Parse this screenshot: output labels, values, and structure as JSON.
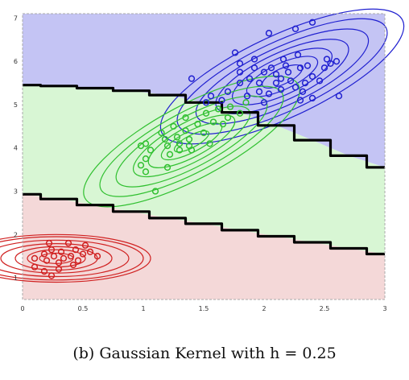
{
  "caption": "(b) Gaussian Kernel with h = 0.25",
  "chart_data": {
    "type": "scatter",
    "title": "",
    "xlabel": "",
    "ylabel": "",
    "xlim": [
      0,
      3
    ],
    "ylim": [
      0.5,
      7.1
    ],
    "grid": false,
    "x_ticks": [
      "0",
      "0.5",
      "1",
      "1.5",
      "2",
      "2.5",
      "3"
    ],
    "x_tick_values": [
      0,
      0.5,
      1,
      1.5,
      2,
      2.5,
      3
    ],
    "y_ticks": [
      "1",
      "2",
      "3",
      "4",
      "5",
      "6",
      "7"
    ],
    "y_tick_values": [
      1,
      2,
      3,
      4,
      5,
      6,
      7
    ],
    "regions": [
      {
        "class": "blue",
        "fill": "#c4c4f4"
      },
      {
        "class": "green",
        "fill": "#d8f6d4"
      },
      {
        "class": "red",
        "fill": "#f4d8d8"
      }
    ],
    "decision_boundaries": [
      {
        "name": "upper",
        "x": [
          0,
          0.3,
          0.6,
          0.9,
          1.2,
          1.5,
          1.8,
          2.1,
          2.4,
          2.7,
          3.0
        ],
        "y": [
          5.45,
          5.43,
          5.38,
          5.32,
          5.22,
          5.05,
          4.82,
          4.52,
          4.18,
          3.82,
          3.55
        ]
      },
      {
        "name": "lower",
        "x": [
          0,
          0.3,
          0.6,
          0.9,
          1.2,
          1.5,
          1.8,
          2.1,
          2.4,
          2.7,
          3.0
        ],
        "y": [
          2.93,
          2.82,
          2.68,
          2.53,
          2.38,
          2.25,
          2.1,
          1.96,
          1.82,
          1.68,
          1.55
        ]
      }
    ],
    "series": [
      {
        "color": "#2020d0",
        "points": [
          [
            1.4,
            5.6
          ],
          [
            1.52,
            5.05
          ],
          [
            1.56,
            5.2
          ],
          [
            1.65,
            5.1
          ],
          [
            1.7,
            5.3
          ],
          [
            1.76,
            6.2
          ],
          [
            1.8,
            5.5
          ],
          [
            1.8,
            5.75
          ],
          [
            1.8,
            5.95
          ],
          [
            1.86,
            5.2
          ],
          [
            1.88,
            5.6
          ],
          [
            1.92,
            5.85
          ],
          [
            1.92,
            6.05
          ],
          [
            1.96,
            5.3
          ],
          [
            1.96,
            5.5
          ],
          [
            2.0,
            5.75
          ],
          [
            2.0,
            5.05
          ],
          [
            2.04,
            5.25
          ],
          [
            2.04,
            6.65
          ],
          [
            2.06,
            5.85
          ],
          [
            2.1,
            5.5
          ],
          [
            2.1,
            5.7
          ],
          [
            2.14,
            5.35
          ],
          [
            2.14,
            5.6
          ],
          [
            2.16,
            6.05
          ],
          [
            2.18,
            5.9
          ],
          [
            2.2,
            5.75
          ],
          [
            2.22,
            5.55
          ],
          [
            2.26,
            5.4
          ],
          [
            2.26,
            6.75
          ],
          [
            2.28,
            6.15
          ],
          [
            2.3,
            5.85
          ],
          [
            2.3,
            5.1
          ],
          [
            2.32,
            5.3
          ],
          [
            2.34,
            5.5
          ],
          [
            2.36,
            5.9
          ],
          [
            2.4,
            5.65
          ],
          [
            2.4,
            5.15
          ],
          [
            2.46,
            5.55
          ],
          [
            2.5,
            5.85
          ],
          [
            2.52,
            6.05
          ],
          [
            2.55,
            5.95
          ],
          [
            2.6,
            6.0
          ],
          [
            2.62,
            5.2
          ],
          [
            2.4,
            6.9
          ]
        ]
      },
      {
        "color": "#30c030",
        "points": [
          [
            0.98,
            3.6
          ],
          [
            0.98,
            4.05
          ],
          [
            1.02,
            4.1
          ],
          [
            1.02,
            3.75
          ],
          [
            1.02,
            3.45
          ],
          [
            1.06,
            3.95
          ],
          [
            1.1,
            3.0
          ],
          [
            1.15,
            4.35
          ],
          [
            1.18,
            4.2
          ],
          [
            1.2,
            4.05
          ],
          [
            1.22,
            3.85
          ],
          [
            1.25,
            4.5
          ],
          [
            1.28,
            4.25
          ],
          [
            1.3,
            4.1
          ],
          [
            1.3,
            3.95
          ],
          [
            1.35,
            4.7
          ],
          [
            1.35,
            4.4
          ],
          [
            1.38,
            4.2
          ],
          [
            1.38,
            4.05
          ],
          [
            1.4,
            3.95
          ],
          [
            1.45,
            4.55
          ],
          [
            1.5,
            4.35
          ],
          [
            1.52,
            4.8
          ],
          [
            1.55,
            4.1
          ],
          [
            1.58,
            4.6
          ],
          [
            1.62,
            4.9
          ],
          [
            1.66,
            4.55
          ],
          [
            1.7,
            4.7
          ],
          [
            1.72,
            4.95
          ],
          [
            1.8,
            4.8
          ],
          [
            1.85,
            5.05
          ],
          [
            1.2,
            3.55
          ]
        ]
      },
      {
        "color": "#d02020",
        "points": [
          [
            0.1,
            1.45
          ],
          [
            0.1,
            1.25
          ],
          [
            0.18,
            1.55
          ],
          [
            0.18,
            1.15
          ],
          [
            0.2,
            1.4
          ],
          [
            0.22,
            1.8
          ],
          [
            0.24,
            1.65
          ],
          [
            0.24,
            1.05
          ],
          [
            0.26,
            1.5
          ],
          [
            0.3,
            1.35
          ],
          [
            0.3,
            1.2
          ],
          [
            0.32,
            1.6
          ],
          [
            0.34,
            1.45
          ],
          [
            0.38,
            1.8
          ],
          [
            0.4,
            1.5
          ],
          [
            0.42,
            1.3
          ],
          [
            0.44,
            1.65
          ],
          [
            0.46,
            1.4
          ],
          [
            0.5,
            1.55
          ],
          [
            0.52,
            1.75
          ],
          [
            0.56,
            1.6
          ],
          [
            0.62,
            1.5
          ]
        ]
      }
    ],
    "contours": [
      {
        "color": "#2020d0",
        "center": [
          2.15,
          5.65
        ],
        "rotation_deg": 25,
        "radii": [
          [
            0.18,
            0.18
          ],
          [
            0.32,
            0.3
          ],
          [
            0.45,
            0.42
          ],
          [
            0.6,
            0.54
          ],
          [
            0.78,
            0.66
          ],
          [
            0.95,
            0.8
          ],
          [
            1.1,
            0.95
          ]
        ]
      },
      {
        "color": "#30c030",
        "center": [
          1.4,
          4.15
        ],
        "rotation_deg": 28,
        "radii": [
          [
            0.16,
            0.14
          ],
          [
            0.28,
            0.24
          ],
          [
            0.4,
            0.35
          ],
          [
            0.54,
            0.46
          ],
          [
            0.7,
            0.58
          ],
          [
            0.85,
            0.7
          ],
          [
            1.0,
            0.85
          ]
        ]
      },
      {
        "color": "#d02020",
        "center": [
          0.28,
          1.45
        ],
        "rotation_deg": 0,
        "radii": [
          [
            0.14,
            0.12
          ],
          [
            0.24,
            0.2
          ],
          [
            0.34,
            0.27
          ],
          [
            0.46,
            0.34
          ],
          [
            0.6,
            0.42
          ],
          [
            0.72,
            0.5
          ],
          [
            0.78,
            0.55
          ]
        ]
      }
    ]
  }
}
